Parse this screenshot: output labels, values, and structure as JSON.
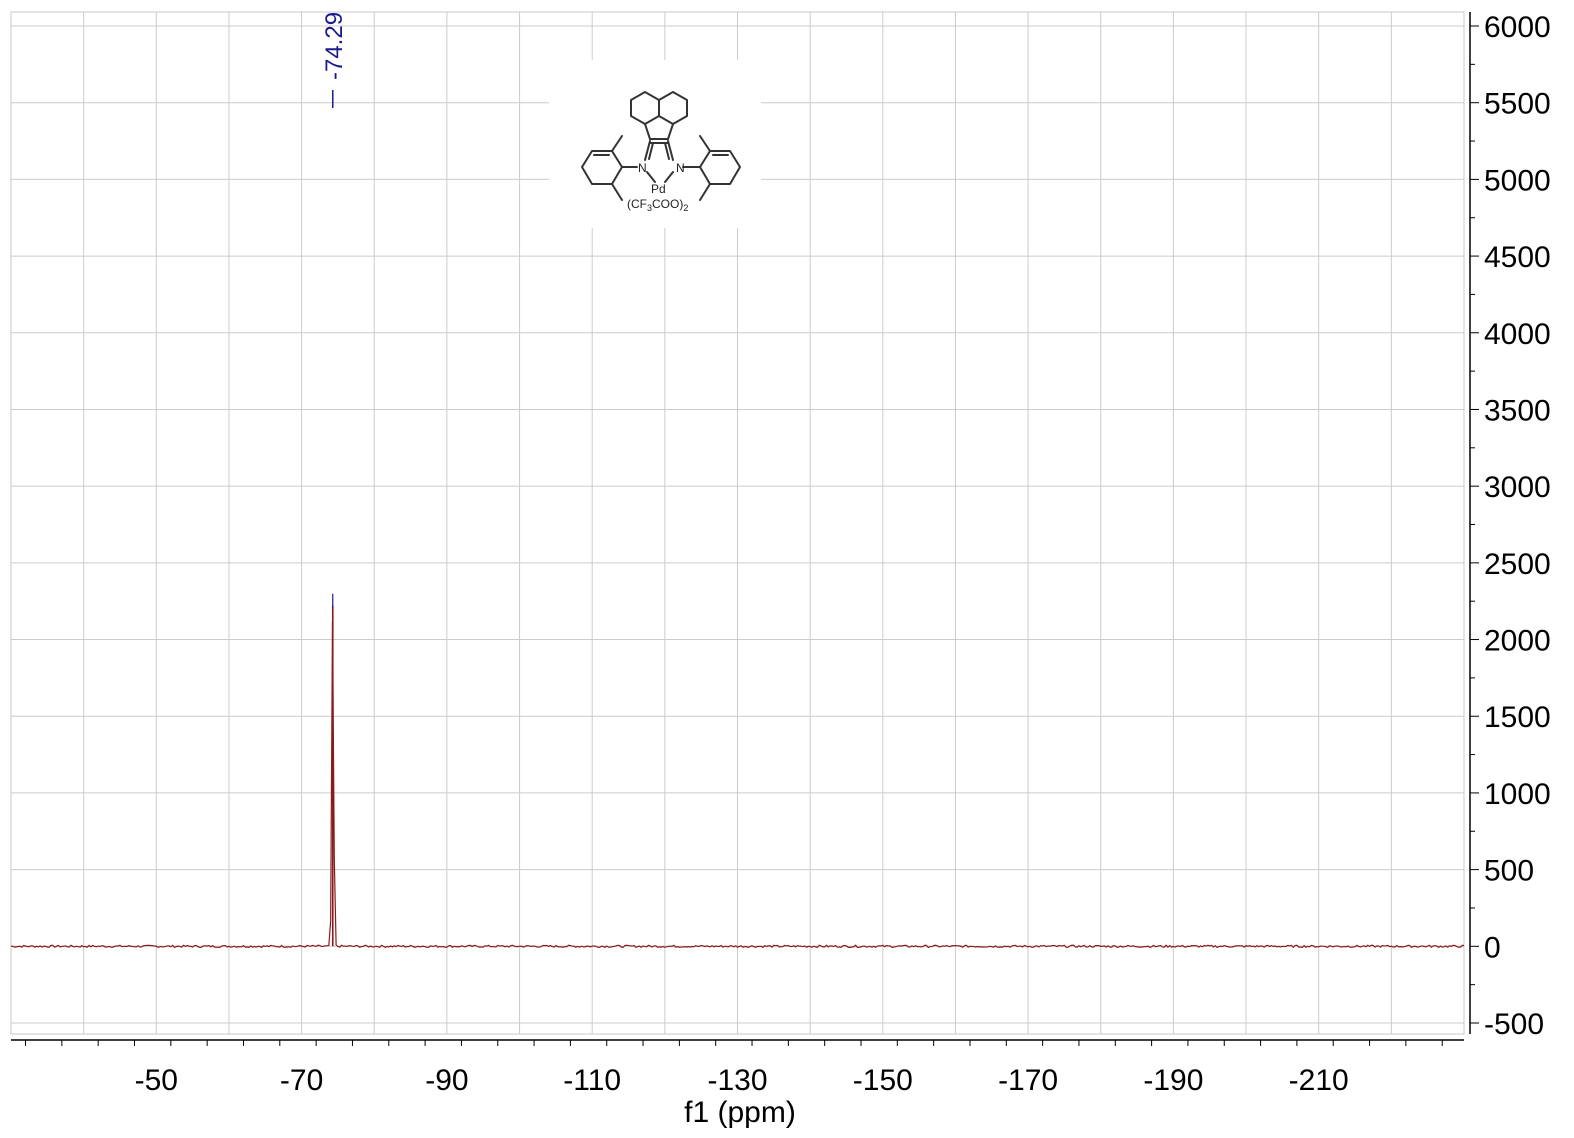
{
  "chart_data": {
    "type": "line",
    "title": "",
    "xlabel": "f1 (ppm)",
    "ylabel": "",
    "x_reversed": true,
    "xlim": [
      -30,
      -230
    ],
    "ylim": [
      -500,
      6000
    ],
    "x_ticks": [
      -50,
      -70,
      -90,
      -110,
      -130,
      -150,
      -170,
      -190,
      -210
    ],
    "y_ticks": [
      -500,
      0,
      500,
      1000,
      1500,
      2000,
      2500,
      3000,
      3500,
      4000,
      4500,
      5000,
      5500,
      6000
    ],
    "grid": true,
    "series": [
      {
        "color": "#8b1a1a",
        "baseline": 0,
        "peaks": [
          {
            "x": -74.29,
            "height": 2220
          }
        ]
      }
    ],
    "peak_labels": [
      {
        "x": -74.29,
        "text": "-74.29",
        "color": "#1a1a8c"
      }
    ],
    "inset_structure": {
      "labels": {
        "n_left": "N",
        "n_right": "N",
        "metal": "Pd",
        "ligand": "(CF",
        "ligand_sub3": "3",
        "ligand_coo": "COO)",
        "ligand_sub2": "2"
      }
    }
  }
}
